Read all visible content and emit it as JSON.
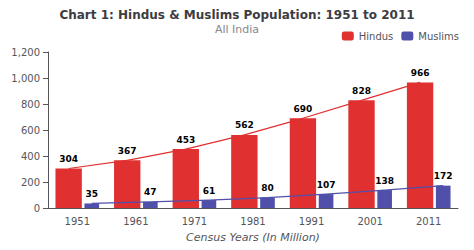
{
  "chart_data": {
    "type": "bar",
    "title": "Chart 1: Hindus & Muslims Population: 1951 to 2011",
    "subtitle": "All India",
    "xlabel": "Census Years (In Million)",
    "categories": [
      "1951",
      "1961",
      "1971",
      "1981",
      "1991",
      "2001",
      "2011"
    ],
    "series": [
      {
        "name": "Hindus",
        "color": "#e03030",
        "values": [
          304,
          367,
          453,
          562,
          690,
          828,
          966
        ]
      },
      {
        "name": "Muslims",
        "color": "#5050aa",
        "values": [
          35,
          47,
          61,
          80,
          107,
          138,
          172
        ]
      }
    ],
    "ylim": [
      0,
      1200
    ],
    "yticks": [
      0,
      200,
      400,
      600,
      800,
      1000,
      1200
    ],
    "grid": false,
    "legend": "upper right",
    "data_labels": true
  }
}
